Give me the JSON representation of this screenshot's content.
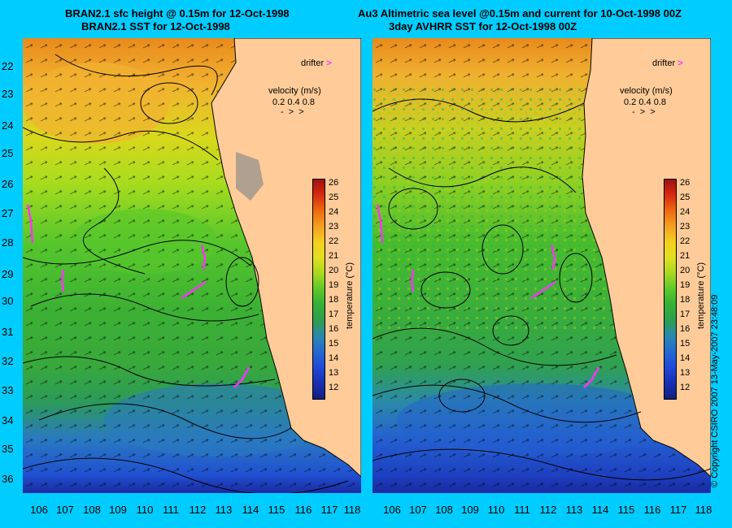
{
  "titles": {
    "left_line1": "BRAN2.1 sfc height @ 0.15m for 12-Oct-1998",
    "left_line2": "BRAN2.1 SST for 12-Oct-1998",
    "right_line1": "Au3 Altimetric sea level  @0.15m and current for 10-Oct-1998 00Z",
    "right_line2": "3day AVHRR SST for 12-Oct-1998 00Z"
  },
  "y_ticks": [
    "22",
    "23",
    "24",
    "25",
    "26",
    "27",
    "28",
    "29",
    "30",
    "31",
    "32",
    "33",
    "34",
    "35",
    "36"
  ],
  "x_ticks": [
    "106",
    "107",
    "108",
    "109",
    "110",
    "111",
    "112",
    "113",
    "114",
    "115",
    "116",
    "117",
    "118"
  ],
  "legend": {
    "drifter": "drifter",
    "velocity_title": "velocity (m/s)",
    "velocity_values": "0.2 0.4 0.8"
  },
  "colorbar": {
    "label": "temperature (°C)",
    "ticks": [
      "26",
      "25",
      "24",
      "23",
      "22",
      "21",
      "20",
      "19",
      "18",
      "17",
      "16",
      "15",
      "14",
      "13",
      "12"
    ]
  },
  "copyright": "© Copyright CSIRO 2007   13-May-2007 23:48:09",
  "colors": {
    "background": "#00ccff",
    "land": "#ffcc99",
    "drifter": "#ff33ff"
  }
}
